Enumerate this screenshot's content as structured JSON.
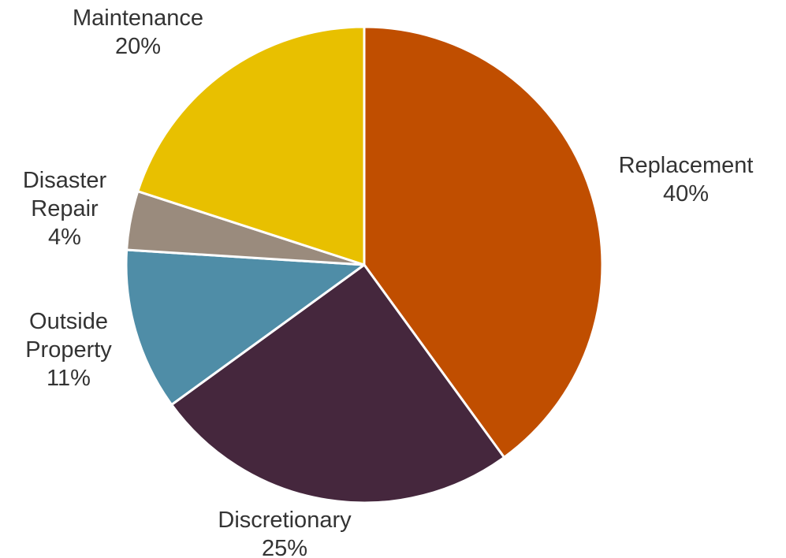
{
  "chart_data": {
    "type": "pie",
    "slices": [
      {
        "label": [
          "Replacement"
        ],
        "value": 40,
        "pct": "40%",
        "color": "#C04E00"
      },
      {
        "label": [
          "Discretionary"
        ],
        "value": 25,
        "pct": "25%",
        "color": "#45273D"
      },
      {
        "label": [
          "Outside",
          "Property"
        ],
        "value": 11,
        "pct": "11%",
        "color": "#4F8DA7"
      },
      {
        "label": [
          "Disaster",
          "Repair"
        ],
        "value": 4,
        "pct": "4%",
        "color": "#9A8B7D"
      },
      {
        "label": [
          "Maintenance"
        ],
        "value": 20,
        "pct": "20%",
        "color": "#E8C000"
      }
    ],
    "start": "12 o'clock",
    "direction": "clockwise",
    "separator_color": "#FFFFFF"
  }
}
